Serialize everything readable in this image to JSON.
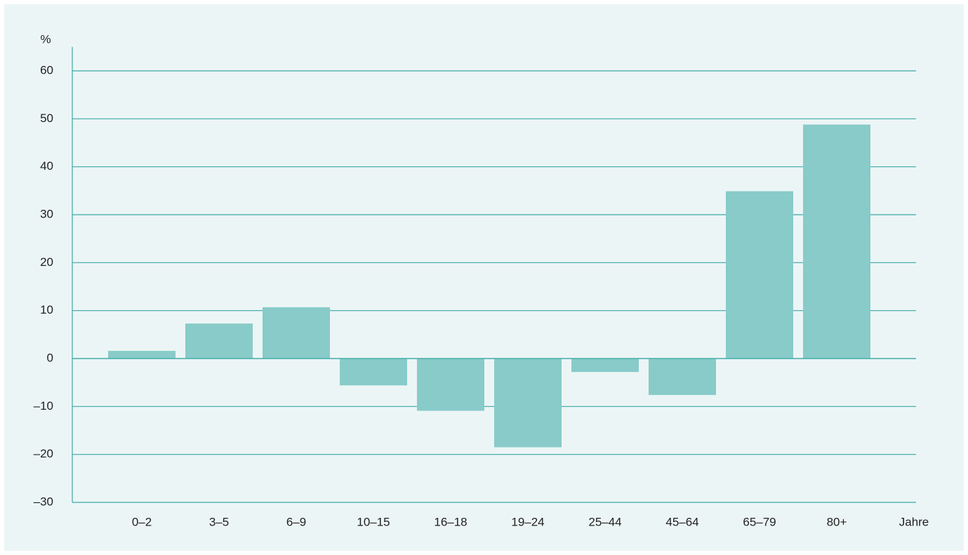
{
  "chart_data": {
    "type": "bar",
    "y_label": "%",
    "x_label": "Jahre",
    "categories": [
      "0–2",
      "3–5",
      "6–9",
      "10–15",
      "16–18",
      "19–24",
      "25–44",
      "45–64",
      "65–79",
      "80+"
    ],
    "values": [
      1.6,
      7.3,
      10.7,
      -5.6,
      -10.9,
      -18.5,
      -2.8,
      -7.6,
      34.9,
      48.8
    ],
    "color": "#88cbc9",
    "ylim": [
      -30,
      65
    ],
    "yticks": [
      {
        "value": -30,
        "label": "–30"
      },
      {
        "value": -20,
        "label": "–20"
      },
      {
        "value": -10,
        "label": "–10"
      },
      0,
      10,
      20,
      30,
      40,
      50,
      60
    ],
    "grid": true
  }
}
